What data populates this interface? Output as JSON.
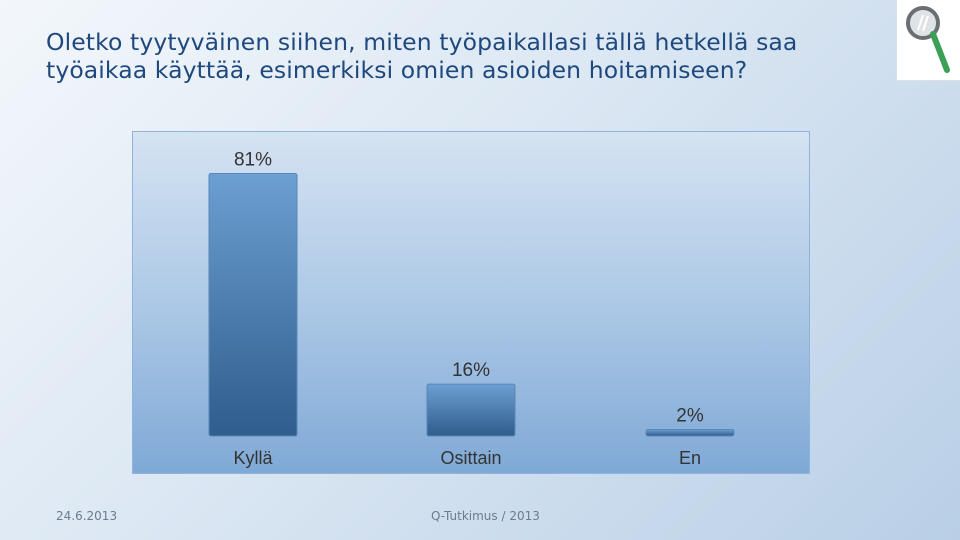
{
  "title": "Oletko tyytyväinen siihen, miten työpaikallasi tällä hetkellä saa työaikaa käyttää, esimerkiksi omien asioiden hoitamiseen?",
  "footer": {
    "date": "24.6.2013",
    "source": "Q-Tutkimus / 2013"
  },
  "colors": {
    "bar_top": "#6c9fd2",
    "bar_bottom": "#2f5d8c",
    "title": "#1f497d",
    "text": "#333333"
  },
  "logo_icon": "magnifier-icon",
  "chart_data": {
    "type": "bar",
    "categories": [
      "Kyllä",
      "Osittain",
      "En"
    ],
    "values": [
      81,
      16,
      2
    ],
    "data_labels": [
      "81%",
      "16%",
      "2%"
    ],
    "ylim": [
      0,
      100
    ],
    "grid": false
  }
}
